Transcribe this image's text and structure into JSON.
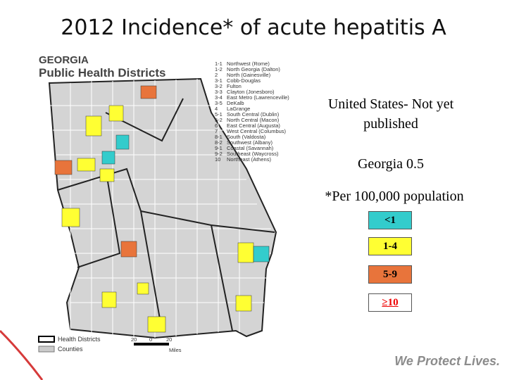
{
  "title": "2012 Incidence* of acute hepatitis A",
  "map": {
    "header": [
      "GEORGIA",
      "Public Health Districts"
    ],
    "districts": [
      {
        "code": "1-1",
        "name": "Northwest (Rome)"
      },
      {
        "code": "1-2",
        "name": "North Georgia (Dalton)"
      },
      {
        "code": "2",
        "name": "North (Gainesville)"
      },
      {
        "code": "3-1",
        "name": "Cobb-Douglas"
      },
      {
        "code": "3-2",
        "name": "Fulton"
      },
      {
        "code": "3-3",
        "name": "Clayton (Jonesboro)"
      },
      {
        "code": "3-4",
        "name": "East Metro (Lawrenceville)"
      },
      {
        "code": "3-5",
        "name": "DeKalb"
      },
      {
        "code": "4",
        "name": "LaGrange"
      },
      {
        "code": "5-1",
        "name": "South Central (Dublin)"
      },
      {
        "code": "5-2",
        "name": "North Central (Macon)"
      },
      {
        "code": "6",
        "name": "East Central (Augusta)"
      },
      {
        "code": "7",
        "name": "West Central (Columbus)"
      },
      {
        "code": "8-1",
        "name": "South (Valdosta)"
      },
      {
        "code": "8-2",
        "name": "Southwest (Albany)"
      },
      {
        "code": "9-1",
        "name": "Coastal (Savannah)"
      },
      {
        "code": "9-2",
        "name": "Southeast (Waycross)"
      },
      {
        "code": "10",
        "name": "Northeast (Athens)"
      }
    ],
    "legend": [
      "Health Districts",
      "Counties"
    ],
    "scale": [
      "20",
      "0",
      "20"
    ],
    "scale_unit": "Miles"
  },
  "info": {
    "us": "United States- Not yet published",
    "georgia": "Georgia 0.5",
    "note": "*Per 100,000 population"
  },
  "legend": [
    "<1",
    "1-4",
    "5-9",
    "≥10"
  ],
  "footer": "We Protect Lives."
}
